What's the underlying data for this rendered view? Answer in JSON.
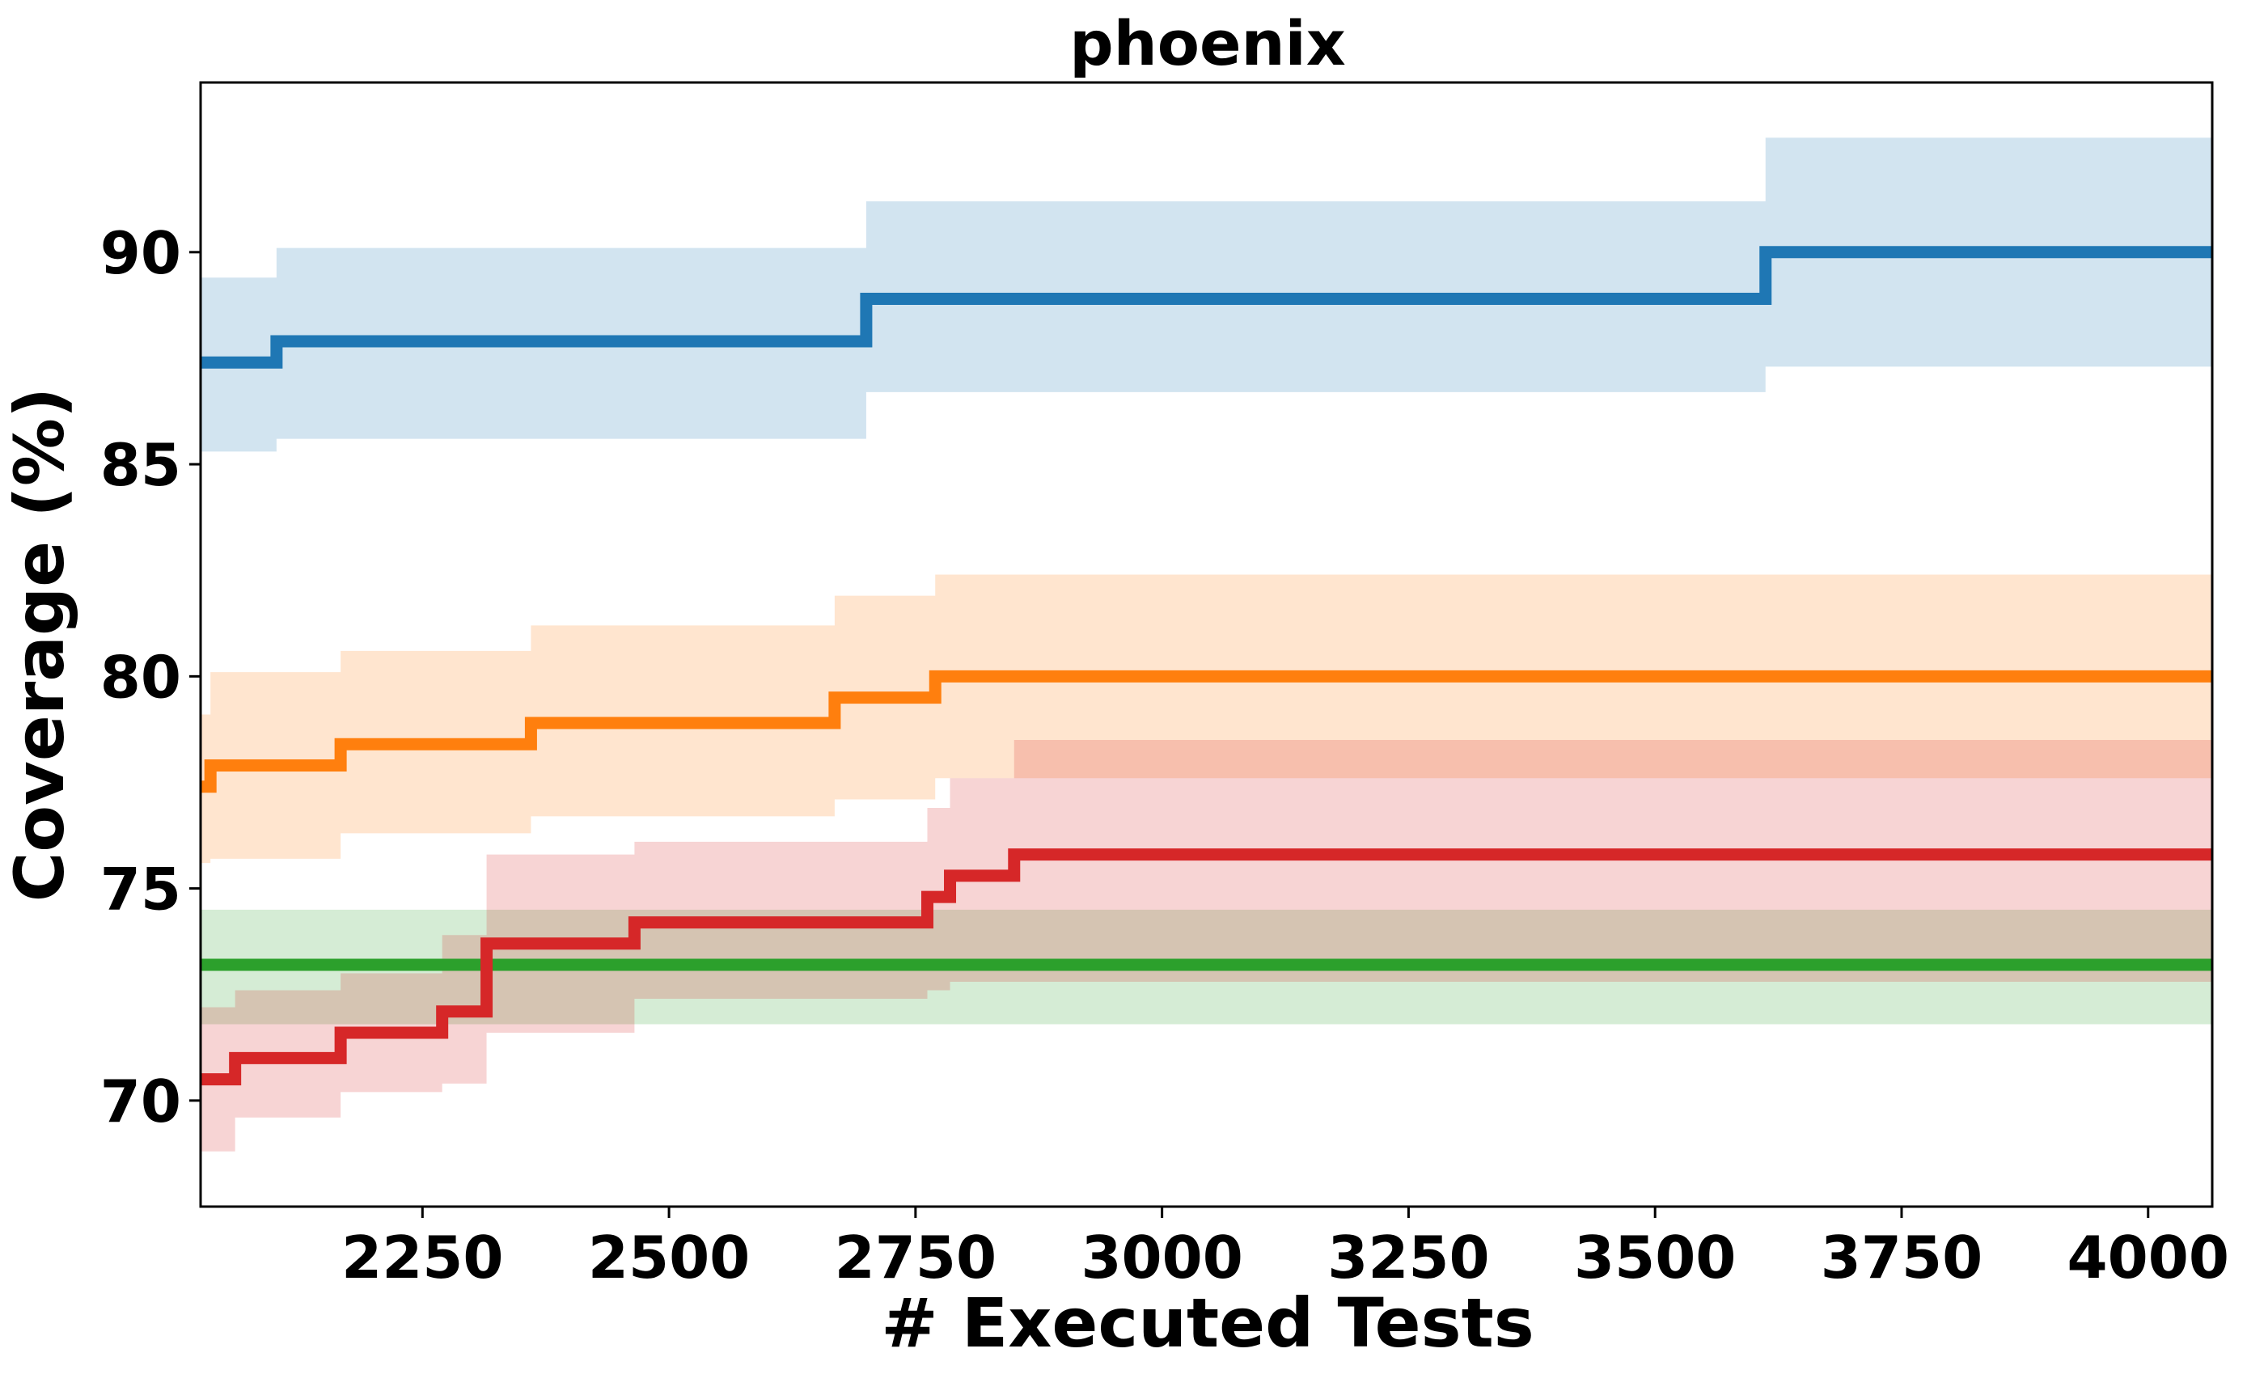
{
  "chart_data": {
    "type": "line",
    "title": "phoenix",
    "xlabel": "# Executed Tests",
    "ylabel": "Coverage (%)",
    "xlim": [
      2025,
      4065
    ],
    "ylim": [
      67.5,
      94.0
    ],
    "xticks": [
      2250,
      2500,
      2750,
      3000,
      3250,
      3500,
      3750,
      4000
    ],
    "yticks": [
      70,
      75,
      80,
      85,
      90
    ],
    "grid": false,
    "legend": "none",
    "series": [
      {
        "color": "#1f77b4",
        "step": "post",
        "points": [
          [
            2025,
            87.4
          ],
          [
            2102,
            87.9
          ],
          [
            2700,
            88.9
          ],
          [
            3612,
            90.0
          ],
          [
            4065,
            90.0
          ]
        ],
        "band": [
          [
            2025,
            85.3,
            89.4
          ],
          [
            2102,
            85.6,
            90.1
          ],
          [
            2700,
            86.7,
            91.2
          ],
          [
            3612,
            87.3,
            92.7
          ],
          [
            4065,
            87.3,
            92.7
          ]
        ]
      },
      {
        "color": "#ff7f0e",
        "step": "post",
        "points": [
          [
            2025,
            77.4
          ],
          [
            2035,
            77.9
          ],
          [
            2167,
            78.4
          ],
          [
            2360,
            78.9
          ],
          [
            2668,
            79.5
          ],
          [
            2770,
            80.0
          ],
          [
            4065,
            80.0
          ]
        ],
        "band": [
          [
            2025,
            75.6,
            79.1
          ],
          [
            2035,
            75.7,
            80.1
          ],
          [
            2167,
            76.3,
            80.6
          ],
          [
            2360,
            76.7,
            81.2
          ],
          [
            2668,
            77.1,
            81.9
          ],
          [
            2770,
            77.6,
            82.4
          ],
          [
            4065,
            77.6,
            82.4
          ]
        ]
      },
      {
        "color": "#2ca02c",
        "step": "post",
        "points": [
          [
            2025,
            73.2
          ],
          [
            4065,
            73.2
          ]
        ],
        "band": [
          [
            2025,
            71.8,
            74.5
          ],
          [
            4065,
            71.8,
            74.5
          ]
        ]
      },
      {
        "color": "#d62728",
        "step": "post",
        "points": [
          [
            2025,
            70.5
          ],
          [
            2060,
            71.0
          ],
          [
            2167,
            71.6
          ],
          [
            2270,
            72.1
          ],
          [
            2315,
            73.7
          ],
          [
            2465,
            74.2
          ],
          [
            2762,
            74.8
          ],
          [
            2785,
            75.3
          ],
          [
            2850,
            75.8
          ],
          [
            4065,
            75.8
          ]
        ],
        "band": [
          [
            2025,
            68.8,
            72.2
          ],
          [
            2060,
            69.6,
            72.6
          ],
          [
            2167,
            70.2,
            73.0
          ],
          [
            2270,
            70.4,
            73.9
          ],
          [
            2315,
            71.6,
            75.8
          ],
          [
            2465,
            72.4,
            76.1
          ],
          [
            2762,
            72.6,
            76.9
          ],
          [
            2785,
            72.8,
            77.6
          ],
          [
            2850,
            72.8,
            78.5
          ],
          [
            4065,
            72.8,
            78.5
          ]
        ]
      }
    ]
  }
}
